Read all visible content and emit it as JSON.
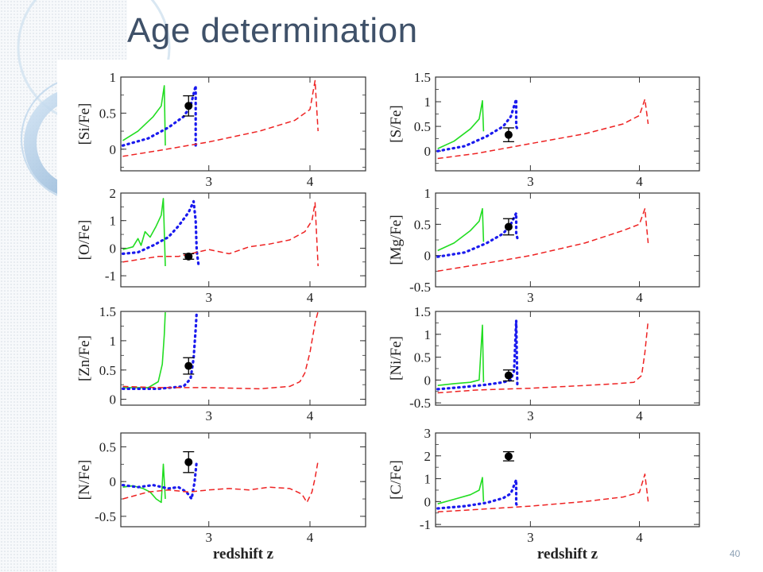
{
  "slide": {
    "title": "Age determination",
    "number": "40"
  },
  "colors": {
    "title": "#3f5169",
    "green": "#22dd22",
    "blue": "#1a1aee",
    "red": "#ee2222",
    "point": "#000000"
  },
  "chart_data": [
    {
      "type": "line",
      "ylabel": "[Si/Fe]",
      "xlabel": "",
      "ylim": [
        -0.3,
        1.0
      ],
      "yticks": [
        0,
        0.5,
        1
      ],
      "ytick_labels": [
        "0",
        "0.5",
        "1"
      ],
      "xticks": [
        3,
        4
      ],
      "xtick_labels": [
        "3",
        "4"
      ],
      "series": [
        {
          "style": "green",
          "x": [
            2.15,
            2.3,
            2.45,
            2.53,
            2.56,
            2.57
          ],
          "y": [
            0.12,
            0.25,
            0.45,
            0.6,
            0.88,
            0.05
          ]
        },
        {
          "style": "blue",
          "x": [
            2.15,
            2.4,
            2.6,
            2.75,
            2.82,
            2.87,
            2.87,
            2.88
          ],
          "y": [
            0.05,
            0.15,
            0.3,
            0.45,
            0.6,
            0.88,
            0.05,
            0.0
          ]
        },
        {
          "style": "red",
          "x": [
            2.15,
            2.5,
            3.0,
            3.5,
            3.85,
            4.0,
            4.05,
            4.08
          ],
          "y": [
            -0.1,
            -0.02,
            0.1,
            0.25,
            0.4,
            0.55,
            0.95,
            0.25
          ]
        }
      ],
      "points": [
        {
          "x": 2.8,
          "y": 0.6,
          "err": 0.14
        }
      ]
    },
    {
      "type": "line",
      "ylabel": "[S/Fe]",
      "xlabel": "",
      "ylim": [
        -0.4,
        1.5
      ],
      "yticks": [
        0,
        0.5,
        1,
        1.5
      ],
      "ytick_labels": [
        "0",
        "0.5",
        "1",
        "1.5"
      ],
      "xticks": [
        3,
        4
      ],
      "xtick_labels": [
        "3",
        "4"
      ],
      "series": [
        {
          "style": "green",
          "x": [
            2.15,
            2.3,
            2.45,
            2.53,
            2.56,
            2.57
          ],
          "y": [
            0.05,
            0.2,
            0.45,
            0.65,
            1.02,
            0.4
          ]
        },
        {
          "style": "blue",
          "x": [
            2.15,
            2.4,
            2.6,
            2.75,
            2.82,
            2.87,
            2.87,
            2.88
          ],
          "y": [
            0.0,
            0.1,
            0.3,
            0.5,
            0.7,
            1.05,
            0.5,
            0.45
          ]
        },
        {
          "style": "red",
          "x": [
            2.15,
            2.5,
            3.0,
            3.5,
            3.85,
            4.0,
            4.05,
            4.08
          ],
          "y": [
            -0.15,
            -0.05,
            0.15,
            0.35,
            0.55,
            0.72,
            1.05,
            0.55
          ]
        }
      ],
      "points": [
        {
          "x": 2.8,
          "y": 0.33,
          "err": 0.14
        }
      ]
    },
    {
      "type": "line",
      "ylabel": "[O/Fe]",
      "xlabel": "",
      "ylim": [
        -1.4,
        2.0
      ],
      "yticks": [
        -1,
        0,
        1,
        2
      ],
      "ytick_labels": [
        "-1",
        "0",
        "1",
        "2"
      ],
      "xticks": [
        3,
        4
      ],
      "xtick_labels": [
        "3",
        "4"
      ],
      "series": [
        {
          "style": "green",
          "x": [
            2.15,
            2.25,
            2.3,
            2.33,
            2.37,
            2.42,
            2.48,
            2.53,
            2.55,
            2.57
          ],
          "y": [
            -0.05,
            0.05,
            0.35,
            0.1,
            0.6,
            0.4,
            0.8,
            1.2,
            1.8,
            -0.65
          ]
        },
        {
          "style": "blue",
          "x": [
            2.15,
            2.3,
            2.45,
            2.6,
            2.7,
            2.8,
            2.85,
            2.87,
            2.88,
            2.9
          ],
          "y": [
            -0.2,
            -0.15,
            0.1,
            0.4,
            0.8,
            1.3,
            1.7,
            1.0,
            -0.1,
            -0.65
          ]
        },
        {
          "style": "red",
          "x": [
            2.15,
            2.5,
            2.7,
            3.0,
            3.2,
            3.4,
            3.6,
            3.8,
            3.95,
            4.02,
            4.05,
            4.08
          ],
          "y": [
            -0.5,
            -0.3,
            -0.3,
            -0.05,
            -0.2,
            0.05,
            0.15,
            0.3,
            0.6,
            1.0,
            1.65,
            -0.65
          ]
        }
      ],
      "points": [
        {
          "x": 2.8,
          "y": -0.3,
          "err": 0.1
        }
      ]
    },
    {
      "type": "line",
      "ylabel": "[Mg/Fe]",
      "xlabel": "",
      "ylim": [
        -0.5,
        1.0
      ],
      "yticks": [
        -0.5,
        0,
        0.5,
        1
      ],
      "ytick_labels": [
        "-0.5",
        "0",
        "0.5",
        "1"
      ],
      "xticks": [
        3,
        4
      ],
      "xtick_labels": [
        "3",
        "4"
      ],
      "series": [
        {
          "style": "green",
          "x": [
            2.15,
            2.3,
            2.45,
            2.53,
            2.56,
            2.57
          ],
          "y": [
            0.08,
            0.2,
            0.4,
            0.55,
            0.75,
            0.22
          ]
        },
        {
          "style": "blue",
          "x": [
            2.15,
            2.4,
            2.6,
            2.75,
            2.82,
            2.87,
            2.87,
            2.88
          ],
          "y": [
            -0.02,
            0.05,
            0.2,
            0.35,
            0.5,
            0.68,
            0.35,
            0.28
          ]
        },
        {
          "style": "red",
          "x": [
            2.15,
            2.5,
            3.0,
            3.5,
            3.85,
            4.0,
            4.05,
            4.08
          ],
          "y": [
            -0.25,
            -0.15,
            0.0,
            0.2,
            0.4,
            0.5,
            0.75,
            0.2
          ]
        }
      ],
      "points": [
        {
          "x": 2.8,
          "y": 0.46,
          "err": 0.13
        }
      ]
    },
    {
      "type": "line",
      "ylabel": "[Zn/Fe]",
      "xlabel": "",
      "ylim": [
        -0.1,
        1.5
      ],
      "yticks": [
        0,
        0.5,
        1,
        1.5
      ],
      "ytick_labels": [
        "0",
        "0.5",
        "1",
        "1.5"
      ],
      "xticks": [
        3,
        4
      ],
      "xtick_labels": [
        "3",
        "4"
      ],
      "series": [
        {
          "style": "green",
          "x": [
            2.15,
            2.4,
            2.5,
            2.54,
            2.56,
            2.57
          ],
          "y": [
            0.2,
            0.2,
            0.3,
            0.6,
            1.1,
            1.5
          ]
        },
        {
          "style": "blue",
          "x": [
            2.15,
            2.5,
            2.75,
            2.82,
            2.85,
            2.87,
            2.88
          ],
          "y": [
            0.18,
            0.18,
            0.22,
            0.35,
            0.7,
            1.2,
            1.5
          ]
        },
        {
          "style": "red",
          "x": [
            2.15,
            2.5,
            3.0,
            3.5,
            3.8,
            3.9,
            3.95,
            4.0,
            4.05,
            4.08
          ],
          "y": [
            0.22,
            0.2,
            0.2,
            0.18,
            0.22,
            0.3,
            0.45,
            0.8,
            1.3,
            1.5
          ]
        }
      ],
      "points": [
        {
          "x": 2.8,
          "y": 0.57,
          "err": 0.14
        }
      ]
    },
    {
      "type": "line",
      "ylabel": "[Ni/Fe]",
      "xlabel": "",
      "ylim": [
        -0.55,
        1.5
      ],
      "yticks": [
        -0.5,
        0,
        0.5,
        1,
        1.5
      ],
      "ytick_labels": [
        "-0.5",
        "0",
        "0.5",
        "1",
        "1.5"
      ],
      "xticks": [
        3,
        4
      ],
      "xtick_labels": [
        "3",
        "4"
      ],
      "series": [
        {
          "style": "green",
          "x": [
            2.15,
            2.3,
            2.45,
            2.53,
            2.56,
            2.57
          ],
          "y": [
            -0.12,
            -0.08,
            -0.05,
            0.0,
            1.2,
            -0.05
          ]
        },
        {
          "style": "blue",
          "x": [
            2.15,
            2.4,
            2.6,
            2.75,
            2.82,
            2.85,
            2.87,
            2.88
          ],
          "y": [
            -0.2,
            -0.15,
            -0.1,
            -0.05,
            0.0,
            0.2,
            1.3,
            -0.1
          ]
        },
        {
          "style": "red",
          "x": [
            2.15,
            2.5,
            3.0,
            3.5,
            3.8,
            3.95,
            4.02,
            4.05,
            4.08
          ],
          "y": [
            -0.28,
            -0.22,
            -0.18,
            -0.12,
            -0.08,
            -0.05,
            0.1,
            0.6,
            1.3
          ]
        }
      ],
      "points": [
        {
          "x": 2.8,
          "y": 0.1,
          "err": 0.12
        }
      ]
    },
    {
      "type": "line",
      "ylabel": "[N/Fe]",
      "xlabel": "redshift z",
      "ylim": [
        -0.65,
        0.7
      ],
      "yticks": [
        -0.5,
        0,
        0.5
      ],
      "ytick_labels": [
        "-0.5",
        "0",
        "0.5"
      ],
      "xticks": [
        3,
        4
      ],
      "xtick_labels": [
        "3",
        "4"
      ],
      "series": [
        {
          "style": "green",
          "x": [
            2.15,
            2.25,
            2.35,
            2.42,
            2.48,
            2.53,
            2.55,
            2.57
          ],
          "y": [
            -0.08,
            -0.06,
            -0.1,
            -0.15,
            -0.25,
            -0.3,
            0.25,
            -0.25
          ]
        },
        {
          "style": "blue",
          "x": [
            2.15,
            2.3,
            2.45,
            2.6,
            2.7,
            2.78,
            2.83,
            2.86,
            2.88
          ],
          "y": [
            -0.05,
            -0.08,
            -0.05,
            -0.1,
            -0.08,
            -0.15,
            -0.25,
            0.0,
            0.3
          ]
        },
        {
          "style": "red",
          "x": [
            2.15,
            2.4,
            2.6,
            2.8,
            3.0,
            3.2,
            3.4,
            3.6,
            3.8,
            3.92,
            3.97,
            4.02,
            4.05,
            4.08
          ],
          "y": [
            -0.25,
            -0.15,
            -0.12,
            -0.15,
            -0.12,
            -0.1,
            -0.12,
            -0.08,
            -0.1,
            -0.18,
            -0.3,
            -0.15,
            0.05,
            0.3
          ]
        }
      ],
      "points": [
        {
          "x": 2.8,
          "y": 0.28,
          "err": 0.15
        }
      ]
    },
    {
      "type": "line",
      "ylabel": "[C/Fe]",
      "xlabel": "redshift z",
      "ylim": [
        -1.1,
        3.0
      ],
      "yticks": [
        -1,
        0,
        1,
        2,
        3
      ],
      "ytick_labels": [
        "-1",
        "0",
        "1",
        "2",
        "3"
      ],
      "xticks": [
        3,
        4
      ],
      "xtick_labels": [
        "3",
        "4"
      ],
      "series": [
        {
          "style": "green",
          "x": [
            2.15,
            2.3,
            2.45,
            2.53,
            2.56,
            2.57
          ],
          "y": [
            -0.1,
            0.1,
            0.3,
            0.5,
            1.05,
            0.0
          ]
        },
        {
          "style": "blue",
          "x": [
            2.15,
            2.4,
            2.6,
            2.75,
            2.82,
            2.87,
            2.87,
            2.88
          ],
          "y": [
            -0.3,
            -0.2,
            -0.05,
            0.15,
            0.35,
            0.95,
            -0.1,
            -0.2
          ]
        },
        {
          "style": "red",
          "x": [
            2.15,
            2.5,
            3.0,
            3.5,
            3.85,
            4.0,
            4.05,
            4.08
          ],
          "y": [
            -0.45,
            -0.35,
            -0.2,
            0.0,
            0.2,
            0.4,
            1.2,
            0.0
          ]
        }
      ],
      "points": [
        {
          "x": 2.8,
          "y": 1.98,
          "err": 0.2
        }
      ]
    }
  ]
}
